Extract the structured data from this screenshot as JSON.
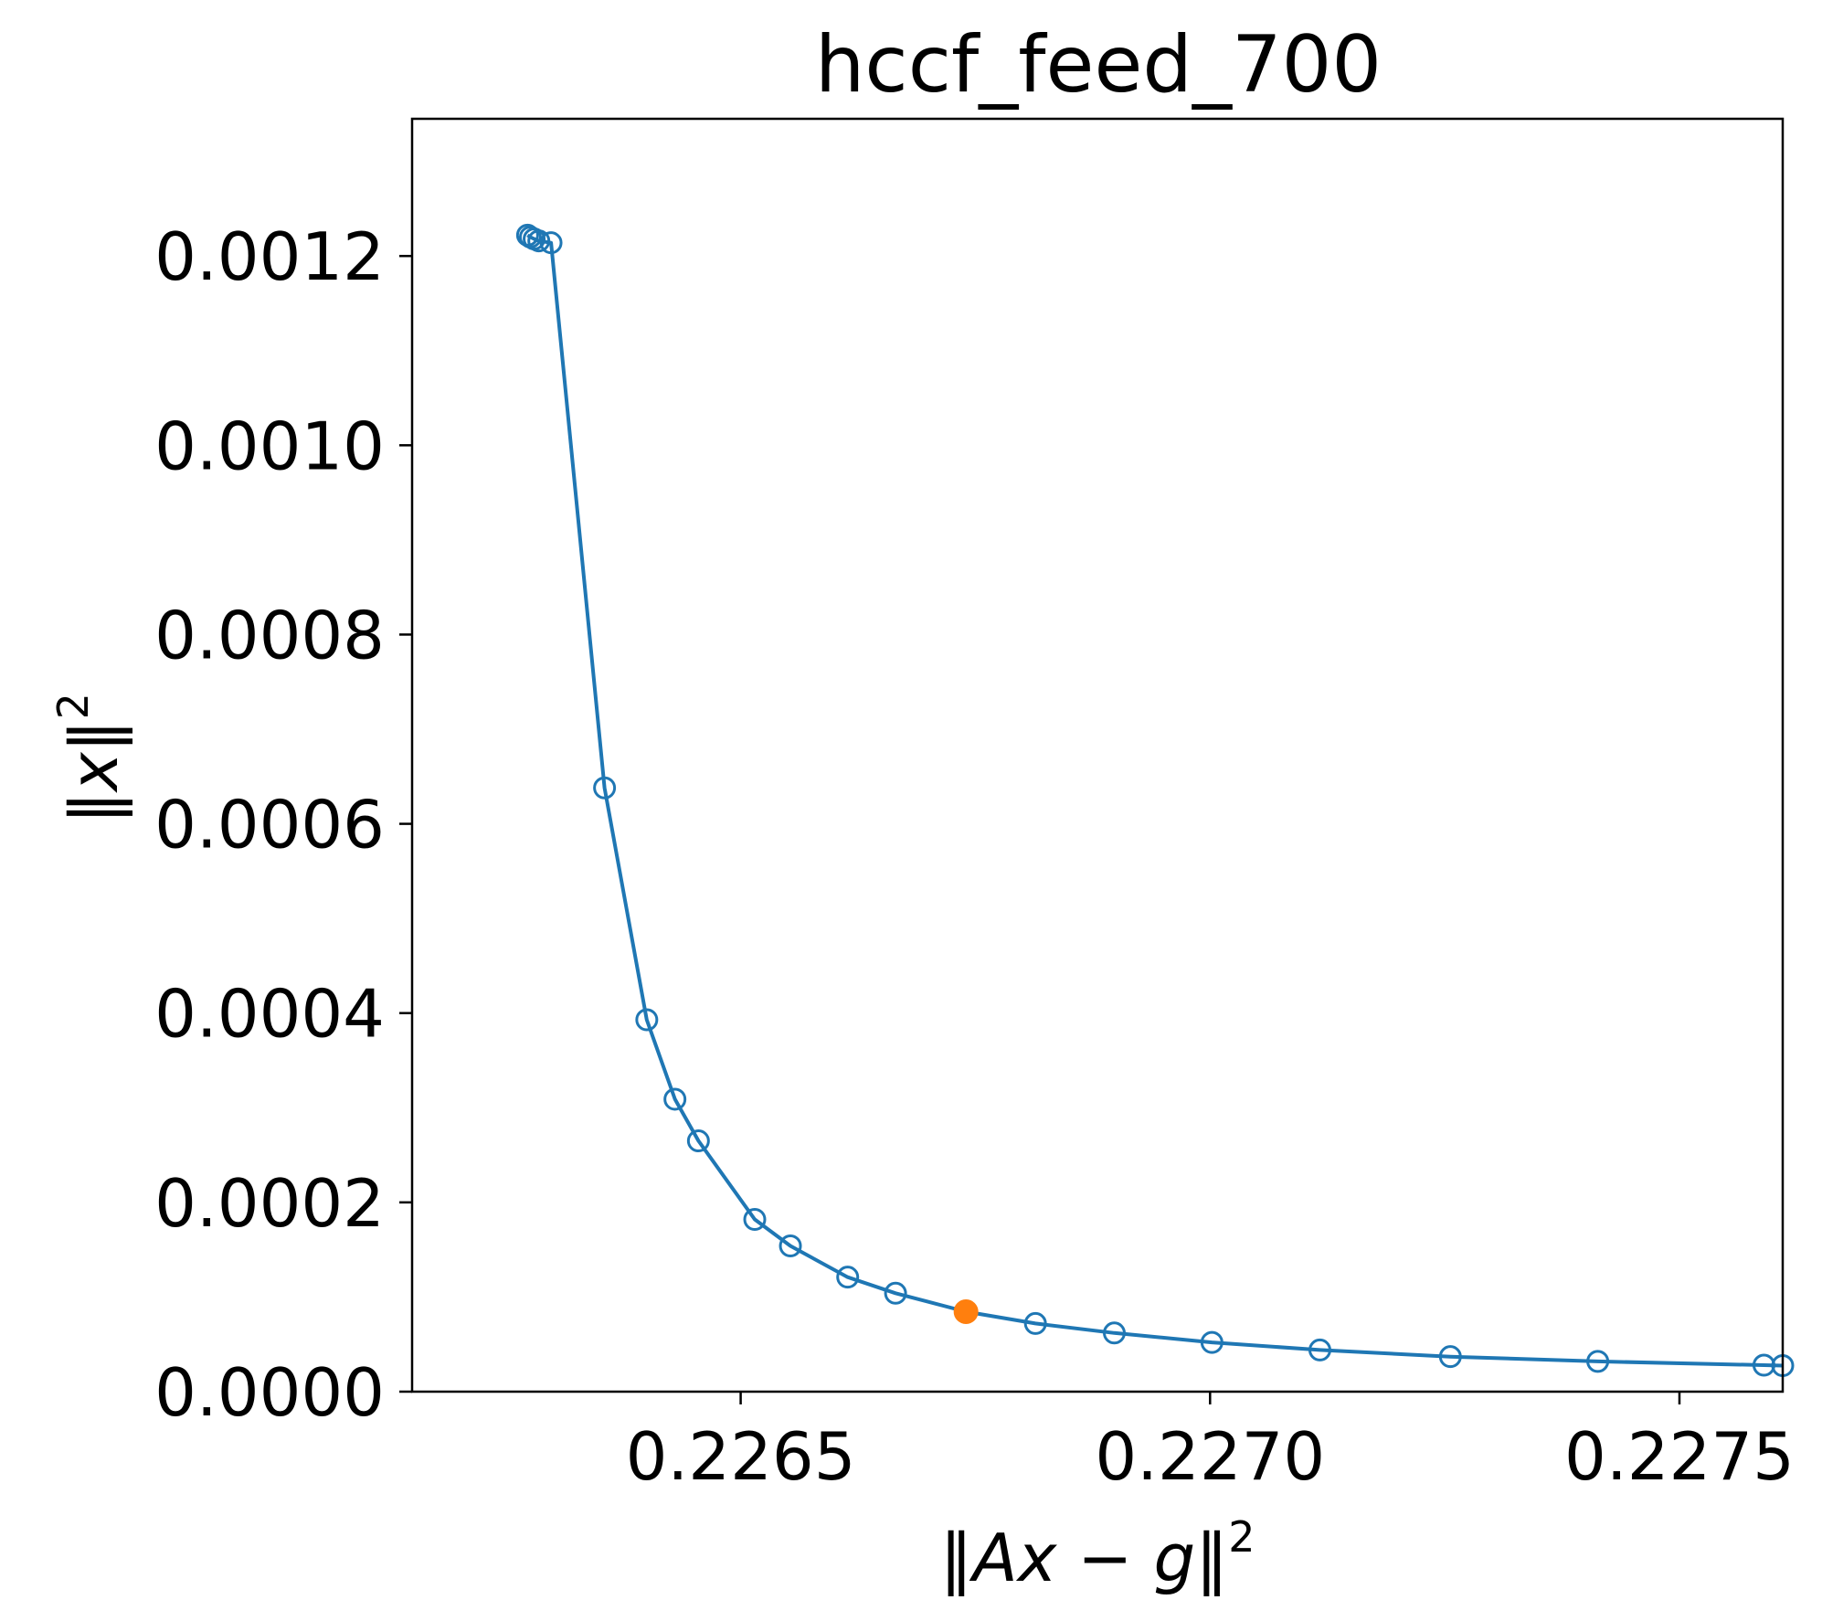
{
  "chart_data": {
    "type": "line",
    "title": "hccf_feed_700",
    "xlabel": {
      "open": "‖",
      "a": "A",
      "x": "x",
      "minus": " − ",
      "g": "g",
      "close": "‖",
      "sup": "2"
    },
    "ylabel": {
      "open": "‖",
      "x": "x",
      "close": "‖",
      "sup": "2"
    },
    "xlim": [
      0.22615,
      0.22761
    ],
    "ylim": [
      0.0,
      0.001345
    ],
    "xticks": [
      {
        "value": 0.2265,
        "label": "0.2265"
      },
      {
        "value": 0.227,
        "label": "0.2270"
      },
      {
        "value": 0.2275,
        "label": "0.2275"
      }
    ],
    "yticks": [
      {
        "value": 0.0,
        "label": "0.0000"
      },
      {
        "value": 0.0002,
        "label": "0.0002"
      },
      {
        "value": 0.0004,
        "label": "0.0004"
      },
      {
        "value": 0.0006,
        "label": "0.0006"
      },
      {
        "value": 0.0008,
        "label": "0.0008"
      },
      {
        "value": 0.001,
        "label": "0.0010"
      },
      {
        "value": 0.0012,
        "label": "0.0012"
      }
    ],
    "grid": false,
    "series": [
      {
        "color": "#1f77b4",
        "marker": "open-circle",
        "points": [
          {
            "x": 0.226273,
            "y": 0.001222
          },
          {
            "x": 0.226276,
            "y": 0.00122
          },
          {
            "x": 0.22628,
            "y": 0.001218
          },
          {
            "x": 0.226285,
            "y": 0.001216
          },
          {
            "x": 0.226298,
            "y": 0.001214
          },
          {
            "x": 0.226355,
            "y": 0.000638
          },
          {
            "x": 0.2264,
            "y": 0.000393
          },
          {
            "x": 0.22643,
            "y": 0.000309
          },
          {
            "x": 0.226455,
            "y": 0.000265
          },
          {
            "x": 0.226515,
            "y": 0.000182
          },
          {
            "x": 0.226553,
            "y": 0.000154
          },
          {
            "x": 0.226614,
            "y": 0.000121
          },
          {
            "x": 0.226665,
            "y": 0.000104
          },
          {
            "x": 0.22674,
            "y": 8.45e-05
          },
          {
            "x": 0.226814,
            "y": 7.2e-05
          },
          {
            "x": 0.226898,
            "y": 6.2e-05
          },
          {
            "x": 0.227002,
            "y": 5.2e-05
          },
          {
            "x": 0.227117,
            "y": 4.4e-05
          },
          {
            "x": 0.227256,
            "y": 3.7e-05
          },
          {
            "x": 0.227413,
            "y": 3.2e-05
          },
          {
            "x": 0.22759,
            "y": 2.8e-05
          },
          {
            "x": 0.22761,
            "y": 2.75e-05
          }
        ]
      }
    ],
    "highlight": {
      "color": "#ff7f0e",
      "marker": "filled-circle",
      "x": 0.22674,
      "y": 8.45e-05
    }
  }
}
